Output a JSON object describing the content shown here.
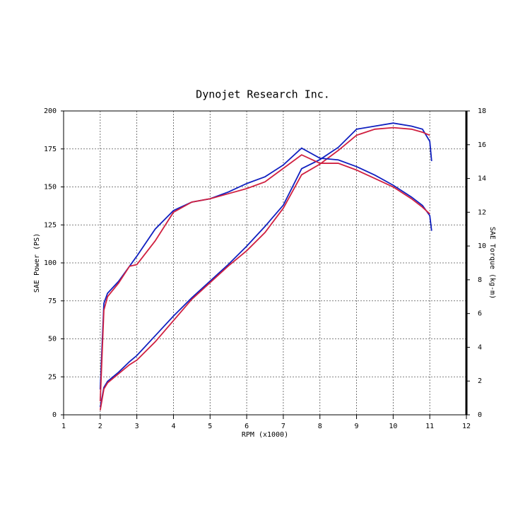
{
  "chart_data": {
    "type": "line",
    "title": "Dynojet Research Inc.",
    "x_label": "RPM (x1000)",
    "y_label": "SAE Power (PS)",
    "y2_label": "SAE Torque (kg-m)",
    "x": [
      2.0,
      2.1,
      2.2,
      2.5,
      2.8,
      3,
      3.5,
      4,
      4.5,
      5,
      5.5,
      6,
      6.5,
      7,
      7.5,
      8,
      8.5,
      9,
      9.5,
      10,
      10.5,
      10.8,
      11,
      11.05
    ],
    "xlim": [
      1,
      12
    ],
    "xticks": [
      1,
      2,
      3,
      4,
      5,
      6,
      7,
      8,
      9,
      10,
      11,
      12
    ],
    "ylim": [
      0,
      200
    ],
    "yticks": [
      0,
      25,
      50,
      75,
      100,
      125,
      150,
      175,
      200
    ],
    "y2lim": [
      0,
      18
    ],
    "y2ticks": [
      0,
      2,
      4,
      6,
      8,
      10,
      12,
      14,
      16,
      18
    ],
    "grid": true,
    "series": [
      {
        "color": "#1020c0",
        "values": [
          5,
          18,
          22,
          28,
          35,
          39,
          52,
          65,
          77,
          88,
          99,
          111,
          124,
          138,
          162,
          168,
          176,
          188,
          190,
          192,
          190,
          188,
          180,
          167
        ]
      },
      {
        "color": "#d02040",
        "values": [
          3,
          17,
          21,
          27,
          33,
          36,
          48,
          62,
          76,
          87,
          98,
          108,
          120,
          136,
          158,
          165,
          174,
          184,
          188,
          189,
          188,
          186,
          184,
          null
        ]
      },
      {
        "color": "#1020c0",
        "axis": "y2",
        "values": [
          1.5,
          6.6,
          7.2,
          7.9,
          8.8,
          9.4,
          11,
          12.1,
          12.6,
          12.8,
          13.2,
          13.7,
          14.1,
          14.8,
          15.8,
          15.2,
          15.1,
          14.7,
          14.2,
          13.6,
          12.9,
          12.4,
          11.8,
          10.9
        ]
      },
      {
        "color": "#d02040",
        "axis": "y2",
        "values": [
          0.8,
          6.2,
          7.0,
          7.8,
          8.8,
          8.9,
          10.3,
          12.0,
          12.6,
          12.8,
          13.1,
          13.4,
          13.8,
          14.6,
          15.4,
          14.9,
          14.9,
          14.5,
          14.0,
          13.5,
          12.8,
          12.3,
          11.9,
          null
        ]
      }
    ]
  }
}
